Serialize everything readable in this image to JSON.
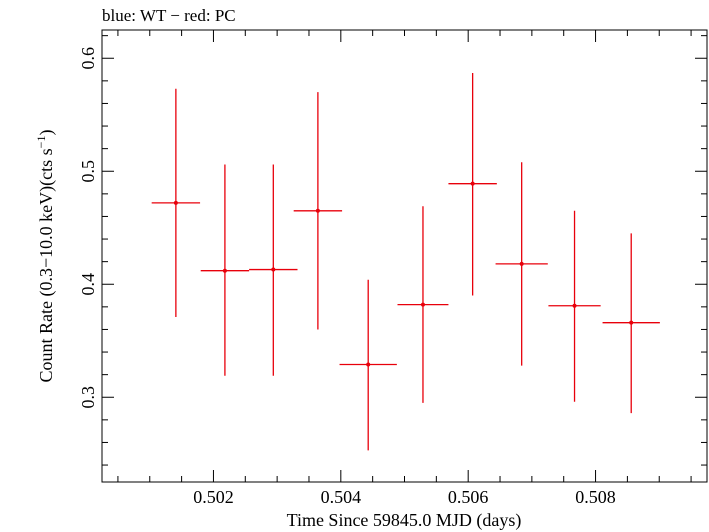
{
  "chart_data": {
    "type": "scatter",
    "title": "blue: WT − red: PC",
    "xlabel": "Time Since 59845.0 MJD (days)",
    "ylabel_main": "Count Rate (0.3−10.0 keV)(cts s",
    "ylabel_sup": "−1",
    "ylabel_tail": ")",
    "xlim": [
      0.50025,
      0.50975
    ],
    "ylim": [
      0.225,
      0.625
    ],
    "x_ticks": [
      0.502,
      0.504,
      0.506,
      0.508
    ],
    "x_tick_labels": [
      "0.502",
      "0.504",
      "0.506",
      "0.508"
    ],
    "x_minor_step": 0.0005,
    "y_ticks": [
      0.3,
      0.4,
      0.5,
      0.6
    ],
    "y_tick_labels": [
      "0.3",
      "0.4",
      "0.5",
      "0.6"
    ],
    "y_minor_step": 0.02,
    "grid": false,
    "series": [
      {
        "name": "PC",
        "color": "#e8000b",
        "points": [
          {
            "x": 0.50141,
            "y": 0.472,
            "xerr": 0.00038,
            "ylo": 0.371,
            "yhi": 0.573
          },
          {
            "x": 0.50218,
            "y": 0.412,
            "xerr": 0.00038,
            "ylo": 0.319,
            "yhi": 0.506
          },
          {
            "x": 0.50294,
            "y": 0.413,
            "xerr": 0.00038,
            "ylo": 0.319,
            "yhi": 0.506
          },
          {
            "x": 0.50364,
            "y": 0.465,
            "xerr": 0.00038,
            "ylo": 0.36,
            "yhi": 0.57
          },
          {
            "x": 0.50443,
            "y": 0.329,
            "xerr": 0.00045,
            "ylo": 0.253,
            "yhi": 0.404
          },
          {
            "x": 0.50529,
            "y": 0.382,
            "xerr": 0.0004,
            "ylo": 0.295,
            "yhi": 0.469
          },
          {
            "x": 0.50607,
            "y": 0.489,
            "xerr": 0.00038,
            "ylo": 0.39,
            "yhi": 0.587
          },
          {
            "x": 0.50684,
            "y": 0.418,
            "xerr": 0.00041,
            "ylo": 0.328,
            "yhi": 0.508
          },
          {
            "x": 0.50767,
            "y": 0.381,
            "xerr": 0.00041,
            "ylo": 0.296,
            "yhi": 0.465
          },
          {
            "x": 0.50856,
            "y": 0.366,
            "xerr": 0.00045,
            "ylo": 0.286,
            "yhi": 0.445
          }
        ]
      }
    ]
  }
}
